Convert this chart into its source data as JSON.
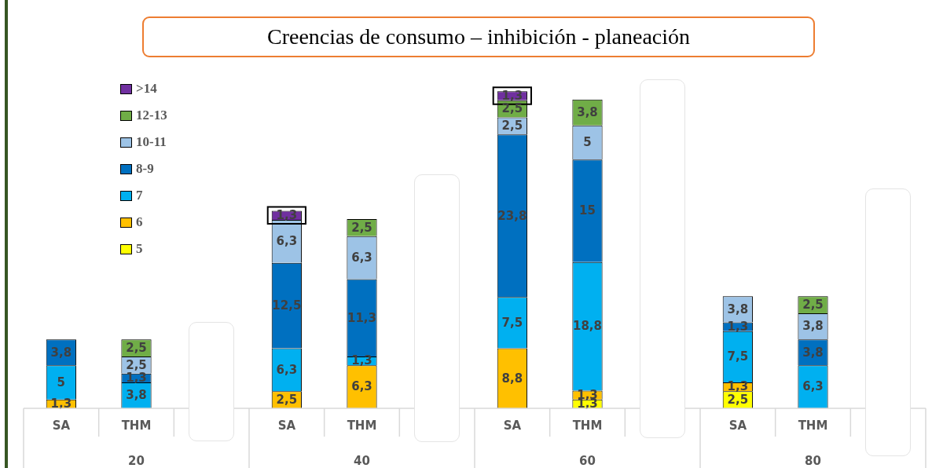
{
  "chart_data": {
    "type": "bar",
    "title": "Creencias de consumo – inhibición - planeación",
    "categories": [
      "SA",
      "THM",
      null,
      "SA",
      "THM",
      null,
      "SA",
      "THM",
      null,
      "SA",
      "THM",
      null
    ],
    "annotations": [
      "20",
      "40",
      "60",
      "80"
    ],
    "stacked": true,
    "legend": "top left",
    "grid": false,
    "tick_labels": "x",
    "series": [
      {
        "name": "5",
        "color": "#ffff00",
        "values": [
          null,
          null,
          null,
          null,
          null,
          null,
          null,
          1.3,
          null,
          2.5,
          null,
          null
        ],
        "value_labels": [
          null,
          null,
          null,
          null,
          null,
          null,
          null,
          "1,3",
          null,
          "2,5",
          null,
          null
        ]
      },
      {
        "name": "6",
        "color": "#ffc000",
        "values": [
          1.3,
          null,
          null,
          2.5,
          6.3,
          null,
          8.8,
          1.3,
          null,
          1.3,
          null,
          null
        ],
        "value_labels": [
          "1,3",
          null,
          null,
          "2,5",
          "6,3",
          null,
          "8,8",
          "1,3",
          null,
          "1,3",
          null,
          null
        ]
      },
      {
        "name": "7",
        "color": "#00b0f0",
        "values": [
          5,
          3.8,
          null,
          6.3,
          1.3,
          null,
          7.5,
          18.8,
          null,
          7.5,
          6.3,
          null
        ],
        "value_labels": [
          "5",
          "3,8",
          null,
          "6,3",
          "1,3",
          null,
          "7,5",
          "18,8",
          null,
          "7,5",
          "6,3",
          null
        ]
      },
      {
        "name": "8-9",
        "color": "#0070c0",
        "values": [
          3.8,
          1.3,
          null,
          12.5,
          11.3,
          null,
          23.8,
          15,
          null,
          1.3,
          3.8,
          null
        ],
        "value_labels": [
          "3,8",
          "1,3",
          null,
          "12,5",
          "11,3",
          null,
          "23,8",
          "15",
          null,
          "1,3",
          "3,8",
          null
        ]
      },
      {
        "name": "10-11",
        "color": "#9dc3e6",
        "values": [
          null,
          2.5,
          null,
          6.3,
          6.3,
          null,
          2.5,
          5,
          null,
          3.8,
          3.8,
          null
        ],
        "value_labels": [
          null,
          "2,5",
          null,
          "6,3",
          "6,3",
          null,
          "2,5",
          "5",
          null,
          "3,8",
          "3,8",
          null
        ]
      },
      {
        "name": "12-13",
        "color": "#70ad47",
        "values": [
          null,
          2.5,
          null,
          null,
          2.5,
          null,
          2.5,
          3.8,
          null,
          null,
          2.5,
          null
        ],
        "value_labels": [
          null,
          "2,5",
          null,
          null,
          "2,5",
          null,
          "2,5",
          "3,8",
          null,
          null,
          "2,5",
          null
        ]
      },
      {
        "name": ">14",
        "color": "#7030a0",
        "values": [
          null,
          null,
          null,
          1.3,
          null,
          null,
          1.3,
          null,
          null,
          null,
          null,
          null
        ],
        "value_labels": [
          null,
          null,
          null,
          "1,3",
          null,
          null,
          "1,3",
          null,
          null,
          null,
          null,
          null
        ]
      }
    ]
  }
}
